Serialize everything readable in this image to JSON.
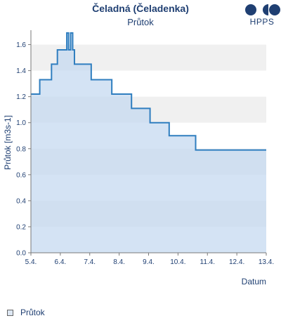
{
  "header": {
    "title": "Čeladná (Čeladenka)",
    "subtitle": "Průtok",
    "logo_text": "HPPS"
  },
  "legend": {
    "items": [
      {
        "label": "Průtok"
      }
    ]
  },
  "colors": {
    "line": "#2f7ebf",
    "fill": "#c5daf0",
    "band": "#f0f0f0",
    "text": "#1f3f72"
  },
  "chart_data": {
    "type": "area",
    "title": "Čeladná (Čeladenka)",
    "subtitle": "Průtok",
    "xlabel": "Datum",
    "ylabel": "Průtok [m3s-1]",
    "x_tick_labels": [
      "5.4.",
      "6.4.",
      "7.4.",
      "8.4.",
      "9.4.",
      "10.4.",
      "11.4.",
      "12.4.",
      "13.4."
    ],
    "y_tick_labels": [
      "0.0",
      "0.2",
      "0.4",
      "0.6",
      "0.8",
      "1.0",
      "1.2",
      "1.4",
      "1.6"
    ],
    "xlim": [
      0,
      8
    ],
    "ylim": [
      0,
      1.7
    ],
    "grid": "alternating horizontal bands",
    "legend_position": "bottom-left",
    "series": [
      {
        "name": "Průtok",
        "x": [
          0,
          0.3,
          0.3,
          0.7,
          0.7,
          0.9,
          0.9,
          1.22,
          1.22,
          1.28,
          1.28,
          1.35,
          1.35,
          1.42,
          1.42,
          1.48,
          1.48,
          2.05,
          2.05,
          2.75,
          2.75,
          3.42,
          3.42,
          4.05,
          4.05,
          4.7,
          4.7,
          5.6,
          5.6,
          6.9,
          6.9,
          8.0
        ],
        "y": [
          1.22,
          1.22,
          1.33,
          1.33,
          1.45,
          1.45,
          1.56,
          1.56,
          1.69,
          1.69,
          1.56,
          1.56,
          1.69,
          1.69,
          1.56,
          1.56,
          1.45,
          1.45,
          1.33,
          1.33,
          1.22,
          1.22,
          1.11,
          1.11,
          1.0,
          1.0,
          0.9,
          0.9,
          0.79,
          0.79,
          0.79,
          0.79
        ]
      }
    ]
  }
}
